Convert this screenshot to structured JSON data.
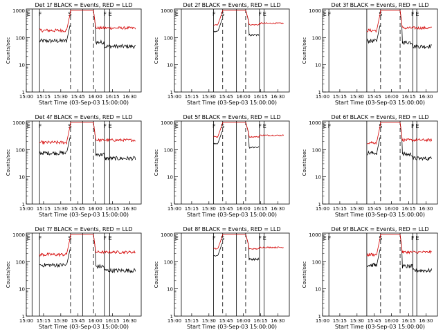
{
  "chart_data": [
    {
      "type": "line",
      "title": "Det 1f BLACK = Events, RED = LLD",
      "ylabel": "Counts/sec",
      "xlabel": "Start Time (03-Sep-03 15:00:00)",
      "variant": "A",
      "series": [
        {
          "name": "Events",
          "color": "#000000"
        },
        {
          "name": "LLD",
          "color": "#d40000"
        }
      ]
    },
    {
      "type": "line",
      "title": "Det 2f BLACK = Events, RED = LLD",
      "ylabel": "Counts/sec",
      "xlabel": "Start Time (03-Sep-03 15:00:00)",
      "variant": "B",
      "series": [
        {
          "name": "Events",
          "color": "#000000"
        },
        {
          "name": "LLD",
          "color": "#d40000"
        }
      ]
    },
    {
      "type": "line",
      "title": "Det 3f BLACK = Events, RED = LLD",
      "ylabel": "Counts/sec",
      "xlabel": "Start Time (03-Sep-03 15:00:00)",
      "variant": "C",
      "series": [
        {
          "name": "Events",
          "color": "#000000"
        },
        {
          "name": "LLD",
          "color": "#d40000"
        }
      ]
    },
    {
      "type": "line",
      "title": "Det 4f BLACK = Events, RED = LLD",
      "ylabel": "Counts/sec",
      "xlabel": "Start Time (03-Sep-03 15:00:00)",
      "variant": "A",
      "series": [
        {
          "name": "Events",
          "color": "#000000"
        },
        {
          "name": "LLD",
          "color": "#d40000"
        }
      ]
    },
    {
      "type": "line",
      "title": "Det 5f BLACK = Events, RED = LLD",
      "ylabel": "Counts/sec",
      "xlabel": "Start Time (03-Sep-03 15:00:00)",
      "variant": "B",
      "series": [
        {
          "name": "Events",
          "color": "#000000"
        },
        {
          "name": "LLD",
          "color": "#d40000"
        }
      ]
    },
    {
      "type": "line",
      "title": "Det 6f BLACK = Events, RED = LLD",
      "ylabel": "Counts/sec",
      "xlabel": "Start Time (03-Sep-03 15:00:00)",
      "variant": "C",
      "series": [
        {
          "name": "Events",
          "color": "#000000"
        },
        {
          "name": "LLD",
          "color": "#d40000"
        }
      ]
    },
    {
      "type": "line",
      "title": "Det 7f BLACK = Events, RED = LLD",
      "ylabel": "Counts/sec",
      "xlabel": "Start Time (03-Sep-03 15:00:00)",
      "variant": "A",
      "series": [
        {
          "name": "Events",
          "color": "#000000"
        },
        {
          "name": "LLD",
          "color": "#d40000"
        }
      ]
    },
    {
      "type": "line",
      "title": "Det 8f BLACK = Events, RED = LLD",
      "ylabel": "Counts/sec",
      "xlabel": "Start Time (03-Sep-03 15:00:00)",
      "variant": "B",
      "series": [
        {
          "name": "Events",
          "color": "#000000"
        },
        {
          "name": "LLD",
          "color": "#d40000"
        }
      ]
    },
    {
      "type": "line",
      "title": "Det 9f BLACK = Events, RED = LLD",
      "ylabel": "Counts/sec",
      "xlabel": "Start Time (03-Sep-03 15:00:00)",
      "variant": "C",
      "series": [
        {
          "name": "Events",
          "color": "#000000"
        },
        {
          "name": "LLD",
          "color": "#d40000"
        }
      ]
    }
  ],
  "axes": {
    "x_ticks": [
      "15:00",
      "15:15",
      "15:30",
      "15:45",
      "16:00",
      "16:15",
      "16:30"
    ],
    "x_range_minutes": [
      0,
      100
    ],
    "y_ticks": [
      "1",
      "10",
      "100",
      "1000"
    ],
    "y_range_log10": [
      0,
      3.05
    ]
  },
  "markers": {
    "solid_lines_min": [
      [
        5.0,
        11.5,
        49.0,
        68.0,
        72.5
      ],
      [
        6.0,
        34.0,
        54.0,
        74.0,
        78.0
      ],
      [
        5.5,
        38.5,
        78.5,
        82.0
      ]
    ],
    "dashed_lines_min": [
      [
        38.5,
        58.5
      ],
      [
        42.0,
        62.0
      ],
      [
        50.5,
        67.5
      ]
    ],
    "labels": [
      [
        {
          "text": "E",
          "min": 2.0
        },
        {
          "text": "F",
          "min": 12.0
        },
        {
          "text": "S",
          "min": 38.0
        },
        {
          "text": "F",
          "min": 68.5
        },
        {
          "text": "E",
          "min": 73.0
        }
      ],
      [
        {
          "text": "E",
          "min": 2.0
        },
        {
          "text": "F",
          "min": 34.5
        },
        {
          "text": "S",
          "min": 42.0
        },
        {
          "text": "F",
          "min": 74.5
        },
        {
          "text": "E",
          "min": 78.5
        }
      ],
      [
        {
          "text": "E",
          "min": 2.0
        },
        {
          "text": "F",
          "min": 6.0
        },
        {
          "text": "S",
          "min": 50.5
        },
        {
          "text": "F",
          "min": 78.5
        },
        {
          "text": "E",
          "min": 82.5
        }
      ]
    ]
  }
}
